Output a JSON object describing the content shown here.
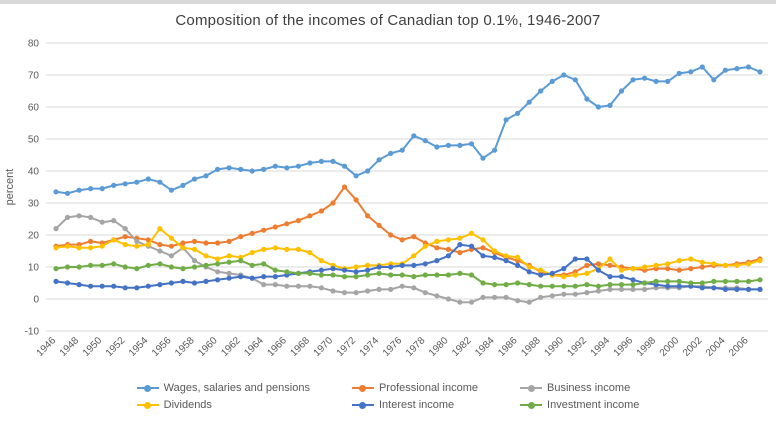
{
  "chart_data": {
    "type": "line",
    "title": "Composition of the incomes of Canadian top 0.1%, 1946-2007",
    "xlabel": "",
    "ylabel": "percent",
    "ylim": [
      -10,
      80
    ],
    "ytick_step": 10,
    "x_label_every": 2,
    "grid": true,
    "legend_position": "bottom",
    "x": [
      1946,
      1947,
      1948,
      1949,
      1950,
      1951,
      1952,
      1953,
      1954,
      1955,
      1956,
      1957,
      1958,
      1959,
      1960,
      1961,
      1962,
      1963,
      1964,
      1965,
      1966,
      1967,
      1968,
      1969,
      1970,
      1971,
      1972,
      1973,
      1974,
      1975,
      1976,
      1977,
      1978,
      1979,
      1980,
      1981,
      1982,
      1983,
      1984,
      1985,
      1986,
      1987,
      1988,
      1989,
      1990,
      1991,
      1992,
      1993,
      1994,
      1995,
      1996,
      1997,
      1998,
      1999,
      2000,
      2001,
      2002,
      2003,
      2004,
      2005,
      2006,
      2007
    ],
    "series": [
      {
        "name": "Wages, salaries and pensions",
        "color": "#5B9BD5",
        "values": [
          33.5,
          33,
          34,
          34.5,
          34.5,
          35.5,
          36,
          36.5,
          37.5,
          36.5,
          34,
          35.5,
          37.5,
          38.5,
          40.5,
          41,
          40.5,
          40,
          40.5,
          41.5,
          41,
          41.5,
          42.5,
          43,
          43,
          41.5,
          38.5,
          40,
          43.5,
          45.5,
          46.5,
          51,
          49.5,
          47.5,
          48,
          48,
          48.5,
          44,
          46.5,
          56,
          58,
          61.5,
          65,
          68,
          70,
          68.5,
          62.5,
          60,
          60.5,
          65,
          68.5,
          69,
          68,
          68,
          70.5,
          71,
          72.5,
          68.5,
          71.5,
          72,
          72.5,
          71
        ]
      },
      {
        "name": "Professional income",
        "color": "#ED7D31",
        "values": [
          16.5,
          17,
          17,
          18,
          17.5,
          18.5,
          19.5,
          19,
          18.5,
          17,
          16.5,
          17.5,
          18,
          17.5,
          17.5,
          18,
          19.5,
          20.5,
          21.5,
          22.5,
          23.5,
          24.5,
          26,
          27.5,
          30,
          35,
          31,
          26,
          23,
          20,
          18.5,
          19.5,
          17.5,
          16,
          15.5,
          14.5,
          15.5,
          16,
          14.5,
          13,
          12,
          10.5,
          8.5,
          7.5,
          7.5,
          8.5,
          10.5,
          11,
          10.5,
          10,
          9.5,
          9,
          9.5,
          9.5,
          9,
          9.5,
          10,
          10.5,
          10.5,
          11,
          11.5,
          12.5
        ]
      },
      {
        "name": "Business income",
        "color": "#A5A5A5",
        "values": [
          22,
          25.5,
          26,
          25.5,
          24,
          24.5,
          22,
          18,
          16.5,
          15,
          13.5,
          16,
          12,
          10,
          8.5,
          8,
          7.5,
          6.5,
          4.5,
          4.5,
          4,
          4,
          4,
          3.5,
          2.5,
          2,
          2,
          2.5,
          3,
          3,
          4,
          3.5,
          2,
          1,
          0,
          -1,
          -1,
          0.5,
          0.5,
          0.5,
          -0.5,
          -1,
          0.5,
          1,
          1.5,
          1.5,
          2,
          2.5,
          3,
          3,
          3,
          3,
          3.5,
          3.5,
          3.5,
          4,
          4,
          3.5,
          3.5,
          3.5,
          3,
          3
        ]
      },
      {
        "name": "Dividends",
        "color": "#FFC000",
        "values": [
          16,
          16.5,
          16,
          16,
          16.5,
          18.5,
          17,
          16.5,
          17,
          22,
          19,
          16,
          15.5,
          13.5,
          12.5,
          13.5,
          13,
          14.5,
          15.5,
          16,
          15.5,
          15.5,
          14.5,
          12,
          10.5,
          9.5,
          10,
          10.5,
          10.5,
          11,
          11,
          13.5,
          16.5,
          18,
          18.5,
          19,
          20.5,
          18.5,
          15,
          13.5,
          13,
          10,
          9,
          7.5,
          7,
          7.5,
          8,
          9.5,
          12.5,
          9,
          9.5,
          10,
          10.5,
          11,
          12,
          12.5,
          11.5,
          11,
          10.5,
          10.5,
          11,
          12
        ]
      },
      {
        "name": "Interest income",
        "color": "#4472C4",
        "values": [
          5.5,
          5,
          4.5,
          4,
          4,
          4,
          3.5,
          3.5,
          4,
          4.5,
          5,
          5.5,
          5,
          5.5,
          6,
          6.5,
          7,
          6.5,
          7,
          7,
          7.5,
          8,
          8.5,
          9,
          9.5,
          9,
          8.5,
          9,
          10,
          10,
          10.5,
          10.5,
          11,
          12,
          13.5,
          17,
          16.5,
          13.5,
          13,
          12,
          10.5,
          8.5,
          7.5,
          8,
          9.5,
          12.5,
          12.5,
          9,
          7,
          7,
          6,
          5,
          4.5,
          4,
          4,
          4,
          3.5,
          3.5,
          3,
          3,
          3,
          3
        ]
      },
      {
        "name": "Investment income",
        "color": "#70AD47",
        "values": [
          9.5,
          10,
          10,
          10.5,
          10.5,
          11,
          10,
          9.5,
          10.5,
          11,
          10,
          9.5,
          10,
          10.5,
          11,
          11.5,
          12,
          10.5,
          11,
          9,
          8.5,
          8,
          8,
          7.5,
          7.5,
          7,
          7,
          7.5,
          8,
          7.5,
          7.5,
          7,
          7.5,
          7.5,
          7.5,
          8,
          7.5,
          5,
          4.5,
          4.5,
          5,
          4.5,
          4,
          4,
          4,
          4,
          4.5,
          4,
          4.5,
          4.5,
          4.5,
          5,
          5.5,
          5.5,
          5.5,
          5,
          5,
          5.5,
          5.5,
          5.5,
          5.5,
          6
        ]
      }
    ]
  },
  "styles": {
    "background": "#ffffff",
    "grid_color": "#d9d9d9",
    "tick_color": "#595959",
    "title_color": "#3f3f3f",
    "line_width": 2,
    "marker_radius": 2.6
  }
}
